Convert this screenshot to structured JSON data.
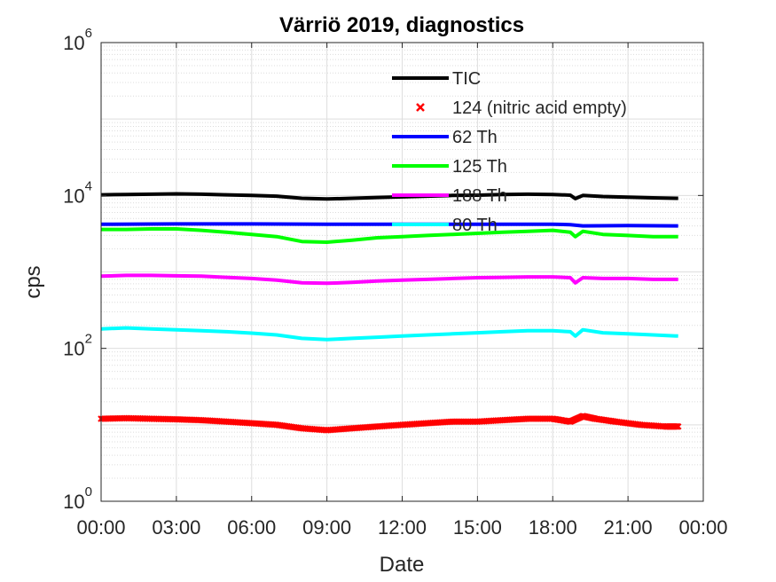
{
  "chart_data": {
    "type": "line",
    "title": "Värriö 2019, diagnostics",
    "xlabel": "Date",
    "ylabel": "cps",
    "yscale": "log",
    "ylim": [
      1,
      1000000
    ],
    "xlim": [
      0,
      24
    ],
    "grid": true,
    "legend_position": "top-center",
    "x_ticks": [
      "00:00",
      "03:00",
      "06:00",
      "09:00",
      "12:00",
      "15:00",
      "18:00",
      "21:00",
      "00:00"
    ],
    "y_ticks": [
      {
        "base": "10",
        "exp": "0"
      },
      {
        "base": "10",
        "exp": "2"
      },
      {
        "base": "10",
        "exp": "4"
      },
      {
        "base": "10",
        "exp": "6"
      }
    ],
    "series": [
      {
        "name": "TIC",
        "color": "#000000",
        "style": "line",
        "x": [
          0,
          1,
          2,
          3,
          4,
          5,
          6,
          7,
          8,
          9,
          10,
          11,
          12,
          13,
          14,
          15,
          16,
          17,
          18,
          18.7,
          18.9,
          19.2,
          20,
          21,
          22,
          23
        ],
        "y": [
          10200,
          10300,
          10400,
          10500,
          10400,
          10200,
          10000,
          9800,
          9200,
          9000,
          9200,
          9400,
          9600,
          9800,
          10000,
          10100,
          10300,
          10400,
          10300,
          10100,
          9100,
          10000,
          9700,
          9500,
          9300,
          9200
        ]
      },
      {
        "name": "124 (nitric acid empty)",
        "color": "#ff0000",
        "style": "marker",
        "x": [
          0,
          1,
          2,
          3,
          4,
          5,
          6,
          7,
          8,
          9,
          10,
          11,
          12,
          13,
          14,
          15,
          16,
          17,
          18,
          18.7,
          19.2,
          19.7,
          20.5,
          21.5,
          22.5,
          23
        ],
        "y": [
          12,
          12.2,
          12,
          11.8,
          11.5,
          11,
          10.5,
          10,
          9,
          8.5,
          9,
          9.5,
          10,
          10.5,
          11,
          11,
          11.5,
          12,
          12,
          11,
          13,
          12,
          11,
          10,
          9.5,
          9.5
        ]
      },
      {
        "name": "62 Th",
        "color": "#0000ff",
        "style": "line",
        "x": [
          0,
          3,
          6,
          9,
          12,
          15,
          18,
          18.7,
          19.2,
          21,
          23
        ],
        "y": [
          4200,
          4250,
          4250,
          4200,
          4200,
          4200,
          4200,
          4150,
          4000,
          4050,
          4000
        ]
      },
      {
        "name": "125 Th",
        "color": "#00ff00",
        "style": "line",
        "x": [
          0,
          1,
          2,
          3,
          4,
          5,
          6,
          7,
          8,
          9,
          10,
          11,
          12,
          13,
          14,
          15,
          16,
          17,
          18,
          18.7,
          18.9,
          19.2,
          20,
          21,
          22,
          23
        ],
        "y": [
          3600,
          3600,
          3650,
          3650,
          3500,
          3300,
          3100,
          2900,
          2500,
          2450,
          2600,
          2800,
          2900,
          3000,
          3100,
          3200,
          3300,
          3400,
          3500,
          3300,
          2900,
          3400,
          3100,
          3000,
          2900,
          2900
        ]
      },
      {
        "name": "188 Th",
        "color": "#ff00ff",
        "style": "line",
        "x": [
          0,
          1,
          2,
          3,
          4,
          5,
          6,
          7,
          8,
          9,
          10,
          11,
          12,
          13,
          14,
          15,
          16,
          17,
          18,
          18.7,
          18.9,
          19.2,
          20,
          21,
          22,
          23
        ],
        "y": [
          880,
          900,
          900,
          890,
          880,
          850,
          820,
          780,
          720,
          710,
          730,
          760,
          780,
          800,
          820,
          840,
          850,
          860,
          860,
          840,
          720,
          840,
          820,
          820,
          800,
          800
        ]
      },
      {
        "name": "80 Th",
        "color": "#00ffff",
        "style": "line",
        "x": [
          0,
          1,
          2,
          3,
          4,
          5,
          6,
          7,
          8,
          9,
          10,
          11,
          12,
          13,
          14,
          15,
          16,
          17,
          18,
          18.7,
          18.9,
          19.2,
          20,
          21,
          22,
          23
        ],
        "y": [
          180,
          185,
          180,
          175,
          170,
          165,
          158,
          150,
          135,
          130,
          135,
          140,
          145,
          150,
          155,
          160,
          165,
          170,
          170,
          165,
          145,
          175,
          160,
          155,
          150,
          145
        ]
      }
    ]
  }
}
